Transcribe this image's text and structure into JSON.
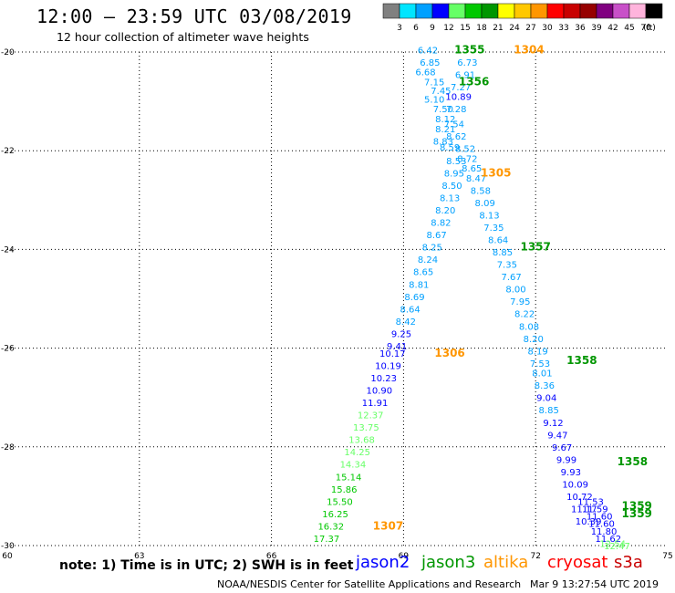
{
  "header": {
    "title": "12:00 – 23:59 UTC 03/08/2019",
    "subtitle": "12 hour collection of altimeter wave heights"
  },
  "colorbar": {
    "labels": [
      "3",
      "6",
      "9",
      "12",
      "15",
      "18",
      "21",
      "24",
      "27",
      "30",
      "33",
      "36",
      "39",
      "42",
      "45",
      "70"
    ],
    "unit": "(ft)",
    "colors": [
      "#808080",
      "#00e5ff",
      "#00a0ff",
      "#0000ff",
      "#66ff66",
      "#00c800",
      "#009600",
      "#ffff00",
      "#ffc800",
      "#ff9600",
      "#ff0000",
      "#c80000",
      "#960000",
      "#800080",
      "#c850c8",
      "#ffb4dc",
      "#000000"
    ]
  },
  "footer": {
    "note": "note: 1) Time is in UTC; 2) SWH is in feet",
    "credit": "NOAA/NESDIS Center for Satellite Applications and Research",
    "timestamp": "Mar 9 13:27:54 UTC 2019"
  },
  "satellites": [
    {
      "name": "jason2",
      "color": "#0000ff"
    },
    {
      "name": "jason3",
      "color": "#009600"
    },
    {
      "name": "altika",
      "color": "#ff9600"
    },
    {
      "name": "cryosat",
      "color": "#ff0000"
    },
    {
      "name": "s3a",
      "color": "#c80000"
    }
  ],
  "chart_data": {
    "type": "scatter",
    "title": "12:00 – 23:59 UTC 03/08/2019",
    "subtitle": "12 hour collection of altimeter wave heights",
    "xlabel": "",
    "ylabel": "",
    "xlim": [
      60,
      75
    ],
    "ylim": [
      -30,
      -20
    ],
    "x_ticks": [
      "60",
      "63",
      "66",
      "69",
      "72",
      "75"
    ],
    "y_ticks": [
      "-20",
      "-22",
      "-24",
      "-26",
      "-28",
      "-30"
    ],
    "grid": true,
    "unit": "ft",
    "wave_heights": [
      {
        "lon": 69.55,
        "lat": -19.95,
        "value": "6.42",
        "color": "#00a0ff"
      },
      {
        "lon": 69.6,
        "lat": -20.2,
        "value": "6.85",
        "color": "#00a0ff"
      },
      {
        "lon": 69.5,
        "lat": -20.4,
        "value": "6.68",
        "color": "#00a0ff"
      },
      {
        "lon": 69.7,
        "lat": -20.6,
        "value": "7.15",
        "color": "#00a0ff"
      },
      {
        "lon": 69.85,
        "lat": -20.78,
        "value": "7.45",
        "color": "#00a0ff"
      },
      {
        "lon": 69.7,
        "lat": -20.95,
        "value": "5.10",
        "color": "#00a0ff"
      },
      {
        "lon": 69.9,
        "lat": -21.15,
        "value": "7.50",
        "color": "#00a0ff"
      },
      {
        "lon": 69.95,
        "lat": -21.35,
        "value": "8.12",
        "color": "#00a0ff"
      },
      {
        "lon": 69.95,
        "lat": -21.55,
        "value": "8.21",
        "color": "#00a0ff"
      },
      {
        "lon": 69.9,
        "lat": -21.8,
        "value": "8.83",
        "color": "#00a0ff"
      },
      {
        "lon": 70.05,
        "lat": -21.92,
        "value": "8.59",
        "color": "#00a0ff"
      },
      {
        "lon": 70.2,
        "lat": -22.2,
        "value": "8.53",
        "color": "#00a0ff"
      },
      {
        "lon": 70.15,
        "lat": -22.45,
        "value": "8.95",
        "color": "#00a0ff"
      },
      {
        "lon": 70.1,
        "lat": -22.7,
        "value": "8.50",
        "color": "#00a0ff"
      },
      {
        "lon": 70.05,
        "lat": -22.95,
        "value": "8.13",
        "color": "#00a0ff"
      },
      {
        "lon": 69.95,
        "lat": -23.2,
        "value": "8.20",
        "color": "#00a0ff"
      },
      {
        "lon": 69.85,
        "lat": -23.45,
        "value": "8.82",
        "color": "#00a0ff"
      },
      {
        "lon": 69.75,
        "lat": -23.7,
        "value": "8.67",
        "color": "#00a0ff"
      },
      {
        "lon": 69.65,
        "lat": -23.95,
        "value": "8.25",
        "color": "#00a0ff"
      },
      {
        "lon": 69.55,
        "lat": -24.2,
        "value": "8.24",
        "color": "#00a0ff"
      },
      {
        "lon": 69.45,
        "lat": -24.45,
        "value": "8.65",
        "color": "#00a0ff"
      },
      {
        "lon": 69.35,
        "lat": -24.7,
        "value": "8.81",
        "color": "#00a0ff"
      },
      {
        "lon": 69.25,
        "lat": -24.95,
        "value": "8.69",
        "color": "#00a0ff"
      },
      {
        "lon": 69.15,
        "lat": -25.2,
        "value": "8.64",
        "color": "#00a0ff"
      },
      {
        "lon": 69.05,
        "lat": -25.45,
        "value": "8.42",
        "color": "#00a0ff"
      },
      {
        "lon": 68.95,
        "lat": -25.7,
        "value": "9.25",
        "color": "#0000ff"
      },
      {
        "lon": 68.85,
        "lat": -25.95,
        "value": "9.41",
        "color": "#0000ff"
      },
      {
        "lon": 68.75,
        "lat": -26.1,
        "value": "10.17",
        "color": "#0000ff"
      },
      {
        "lon": 68.65,
        "lat": -26.35,
        "value": "10.19",
        "color": "#0000ff"
      },
      {
        "lon": 68.55,
        "lat": -26.6,
        "value": "10.23",
        "color": "#0000ff"
      },
      {
        "lon": 68.45,
        "lat": -26.85,
        "value": "10.90",
        "color": "#0000ff"
      },
      {
        "lon": 68.35,
        "lat": -27.1,
        "value": "11.91",
        "color": "#0000ff"
      },
      {
        "lon": 68.25,
        "lat": -27.35,
        "value": "12.37",
        "color": "#66ff66"
      },
      {
        "lon": 68.15,
        "lat": -27.6,
        "value": "13.75",
        "color": "#66ff66"
      },
      {
        "lon": 68.05,
        "lat": -27.85,
        "value": "13.68",
        "color": "#66ff66"
      },
      {
        "lon": 67.95,
        "lat": -28.1,
        "value": "14.25",
        "color": "#66ff66"
      },
      {
        "lon": 67.85,
        "lat": -28.35,
        "value": "14.34",
        "color": "#66ff66"
      },
      {
        "lon": 67.75,
        "lat": -28.6,
        "value": "15.14",
        "color": "#00c800"
      },
      {
        "lon": 67.65,
        "lat": -28.85,
        "value": "15.86",
        "color": "#00c800"
      },
      {
        "lon": 67.55,
        "lat": -29.1,
        "value": "15.50",
        "color": "#00c800"
      },
      {
        "lon": 67.45,
        "lat": -29.35,
        "value": "16.25",
        "color": "#00c800"
      },
      {
        "lon": 67.35,
        "lat": -29.6,
        "value": "16.32",
        "color": "#00c800"
      },
      {
        "lon": 67.25,
        "lat": -29.85,
        "value": "17.37",
        "color": "#00c800"
      },
      {
        "lon": 70.45,
        "lat": -20.2,
        "value": "6.73",
        "color": "#00a0ff"
      },
      {
        "lon": 70.4,
        "lat": -20.45,
        "value": "6.91",
        "color": "#00a0ff"
      },
      {
        "lon": 70.3,
        "lat": -20.7,
        "value": "7.27",
        "color": "#00a0ff"
      },
      {
        "lon": 70.25,
        "lat": -20.9,
        "value": "10.89",
        "color": "#0000ff"
      },
      {
        "lon": 70.2,
        "lat": -21.15,
        "value": "7.28",
        "color": "#00a0ff"
      },
      {
        "lon": 70.15,
        "lat": -21.45,
        "value": "7.54",
        "color": "#00a0ff"
      },
      {
        "lon": 70.2,
        "lat": -21.7,
        "value": "8.62",
        "color": "#00a0ff"
      },
      {
        "lon": 70.4,
        "lat": -21.95,
        "value": "8.52",
        "color": "#00a0ff"
      },
      {
        "lon": 70.45,
        "lat": -22.15,
        "value": "8.72",
        "color": "#00a0ff"
      },
      {
        "lon": 70.55,
        "lat": -22.35,
        "value": "8.65",
        "color": "#00a0ff"
      },
      {
        "lon": 70.65,
        "lat": -22.55,
        "value": "8.47",
        "color": "#00a0ff"
      },
      {
        "lon": 70.75,
        "lat": -22.8,
        "value": "8.58",
        "color": "#00a0ff"
      },
      {
        "lon": 70.85,
        "lat": -23.05,
        "value": "8.09",
        "color": "#00a0ff"
      },
      {
        "lon": 70.95,
        "lat": -23.3,
        "value": "8.13",
        "color": "#00a0ff"
      },
      {
        "lon": 71.05,
        "lat": -23.55,
        "value": "7.35",
        "color": "#00a0ff"
      },
      {
        "lon": 71.15,
        "lat": -23.8,
        "value": "8.64",
        "color": "#00a0ff"
      },
      {
        "lon": 71.25,
        "lat": -24.05,
        "value": "8.85",
        "color": "#00a0ff"
      },
      {
        "lon": 71.35,
        "lat": -24.3,
        "value": "7.35",
        "color": "#00a0ff"
      },
      {
        "lon": 71.45,
        "lat": -24.55,
        "value": "7.67",
        "color": "#00a0ff"
      },
      {
        "lon": 71.55,
        "lat": -24.8,
        "value": "8.00",
        "color": "#00a0ff"
      },
      {
        "lon": 71.65,
        "lat": -25.05,
        "value": "7.95",
        "color": "#00a0ff"
      },
      {
        "lon": 71.75,
        "lat": -25.3,
        "value": "8.22",
        "color": "#00a0ff"
      },
      {
        "lon": 71.85,
        "lat": -25.55,
        "value": "8.08",
        "color": "#00a0ff"
      },
      {
        "lon": 71.95,
        "lat": -25.8,
        "value": "8.20",
        "color": "#00a0ff"
      },
      {
        "lon": 72.05,
        "lat": -26.05,
        "value": "8.19",
        "color": "#00a0ff"
      },
      {
        "lon": 72.1,
        "lat": -26.3,
        "value": "7.53",
        "color": "#00a0ff"
      },
      {
        "lon": 72.15,
        "lat": -26.5,
        "value": "8.01",
        "color": "#00a0ff"
      },
      {
        "lon": 72.2,
        "lat": -26.75,
        "value": "8.36",
        "color": "#00a0ff"
      },
      {
        "lon": 72.25,
        "lat": -27.0,
        "value": "9.04",
        "color": "#0000ff"
      },
      {
        "lon": 72.3,
        "lat": -27.25,
        "value": "8.85",
        "color": "#00a0ff"
      },
      {
        "lon": 72.4,
        "lat": -27.5,
        "value": "9.12",
        "color": "#0000ff"
      },
      {
        "lon": 72.5,
        "lat": -27.75,
        "value": "9.47",
        "color": "#0000ff"
      },
      {
        "lon": 72.6,
        "lat": -28.0,
        "value": "9.67",
        "color": "#0000ff"
      },
      {
        "lon": 72.7,
        "lat": -28.25,
        "value": "9.99",
        "color": "#0000ff"
      },
      {
        "lon": 72.8,
        "lat": -28.5,
        "value": "9.93",
        "color": "#0000ff"
      },
      {
        "lon": 72.9,
        "lat": -28.75,
        "value": "10.09",
        "color": "#0000ff"
      },
      {
        "lon": 73.0,
        "lat": -29.0,
        "value": "10.72",
        "color": "#0000ff"
      },
      {
        "lon": 73.1,
        "lat": -29.25,
        "value": "11.17",
        "color": "#0000ff"
      },
      {
        "lon": 73.2,
        "lat": -29.5,
        "value": "10.39",
        "color": "#0000ff"
      },
      {
        "lon": 73.25,
        "lat": -29.1,
        "value": "11.53",
        "color": "#0000ff"
      },
      {
        "lon": 73.35,
        "lat": -29.25,
        "value": "11.59",
        "color": "#0000ff"
      },
      {
        "lon": 73.45,
        "lat": -29.4,
        "value": "11.60",
        "color": "#0000ff"
      },
      {
        "lon": 73.5,
        "lat": -29.55,
        "value": "11.60",
        "color": "#0000ff"
      },
      {
        "lon": 73.55,
        "lat": -29.7,
        "value": "11.80",
        "color": "#0000ff"
      },
      {
        "lon": 73.65,
        "lat": -29.85,
        "value": "11.62",
        "color": "#0000ff"
      },
      {
        "lon": 73.75,
        "lat": -29.95,
        "value": "12.54",
        "color": "#66ff66"
      },
      {
        "lon": 73.85,
        "lat": -30.0,
        "value": "12.47",
        "color": "#66ff66"
      }
    ],
    "pass_labels": [
      {
        "lon": 70.5,
        "lat": -19.95,
        "label": "1355",
        "color": "#009600"
      },
      {
        "lon": 71.85,
        "lat": -19.95,
        "label": "1304",
        "color": "#ff9600"
      },
      {
        "lon": 70.6,
        "lat": -20.6,
        "label": "1356",
        "color": "#009600"
      },
      {
        "lon": 71.1,
        "lat": -22.45,
        "label": "1305",
        "color": "#ff9600"
      },
      {
        "lon": 72.0,
        "lat": -23.95,
        "label": "1357",
        "color": "#009600"
      },
      {
        "lon": 70.05,
        "lat": -26.1,
        "label": "1306",
        "color": "#ff9600"
      },
      {
        "lon": 73.05,
        "lat": -26.25,
        "label": "1358",
        "color": "#009600"
      },
      {
        "lon": 74.2,
        "lat": -28.3,
        "label": "1358",
        "color": "#009600"
      },
      {
        "lon": 74.3,
        "lat": -29.2,
        "label": "1359",
        "color": "#009600"
      },
      {
        "lon": 74.3,
        "lat": -29.35,
        "label": "1359",
        "color": "#009600"
      },
      {
        "lon": 68.65,
        "lat": -29.6,
        "label": "1307",
        "color": "#ff9600"
      }
    ]
  }
}
